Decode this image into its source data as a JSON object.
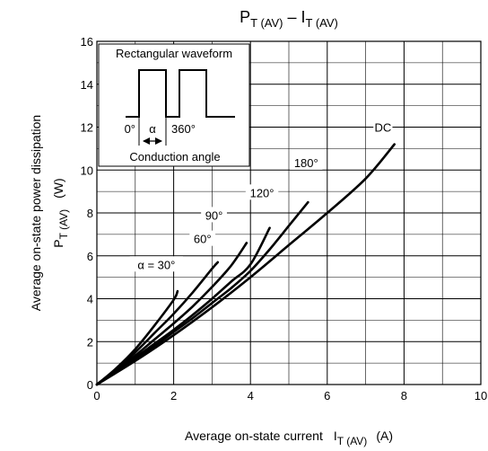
{
  "chart_data": {
    "type": "line",
    "title": {
      "main": "P",
      "main_sub": "T (AV)",
      "sep": " – ",
      "second": "I",
      "second_sub": "T (AV)"
    },
    "xlabel": {
      "text": "Average on-state current",
      "sym": "I",
      "sym_sub": "T (AV)",
      "unit": "(A)"
    },
    "ylabel": {
      "line1": "Average on-state power dissipation",
      "sym": "P",
      "sym_sub": "T (AV)",
      "unit": "(W)"
    },
    "xlim": [
      0,
      10
    ],
    "ylim": [
      0,
      16
    ],
    "x_ticks": [
      "0",
      "2",
      "4",
      "6",
      "8",
      "10"
    ],
    "y_ticks": [
      "0",
      "2",
      "4",
      "6",
      "8",
      "10",
      "12",
      "14",
      "16"
    ],
    "grid": true,
    "series": [
      {
        "name": "α = 30°",
        "x": [
          0,
          0.5,
          1.0,
          1.5,
          2.0,
          2.1
        ],
        "y": [
          0,
          0.75,
          1.65,
          2.75,
          3.95,
          4.35
        ]
      },
      {
        "name": "60°",
        "x": [
          0,
          0.5,
          1.0,
          1.5,
          2.0,
          2.5,
          3.0,
          3.15
        ],
        "y": [
          0,
          0.7,
          1.5,
          2.4,
          3.3,
          4.3,
          5.4,
          5.7
        ]
      },
      {
        "name": "90°",
        "x": [
          0,
          0.5,
          1.0,
          1.5,
          2.0,
          2.5,
          3.0,
          3.5,
          3.9
        ],
        "y": [
          0,
          0.65,
          1.35,
          2.1,
          2.85,
          3.65,
          4.55,
          5.55,
          6.6
        ]
      },
      {
        "name": "120°",
        "x": [
          0,
          0.5,
          1.0,
          1.5,
          2.0,
          2.5,
          3.0,
          3.5,
          4.0,
          4.5
        ],
        "y": [
          0,
          0.6,
          1.25,
          1.9,
          2.55,
          3.25,
          4.0,
          4.8,
          5.6,
          7.3
        ]
      },
      {
        "name": "180°",
        "x": [
          0,
          0.5,
          1.0,
          1.5,
          2.0,
          2.5,
          3.0,
          3.5,
          4.0,
          4.5,
          5.0,
          5.5
        ],
        "y": [
          0,
          0.6,
          1.2,
          1.8,
          2.45,
          3.1,
          3.8,
          4.5,
          5.3,
          6.3,
          7.4,
          8.5
        ]
      },
      {
        "name": "DC",
        "x": [
          0,
          1,
          2,
          3,
          4,
          5,
          6,
          7,
          7.75
        ],
        "y": [
          0,
          1.1,
          2.3,
          3.6,
          5.0,
          6.5,
          8.0,
          9.6,
          11.2
        ]
      }
    ],
    "annotations": {
      "waveform_title": "Rectangular waveform",
      "angle_start": "0°",
      "alpha": "α",
      "angle_end": "360°",
      "conduction": "Conduction angle"
    }
  }
}
